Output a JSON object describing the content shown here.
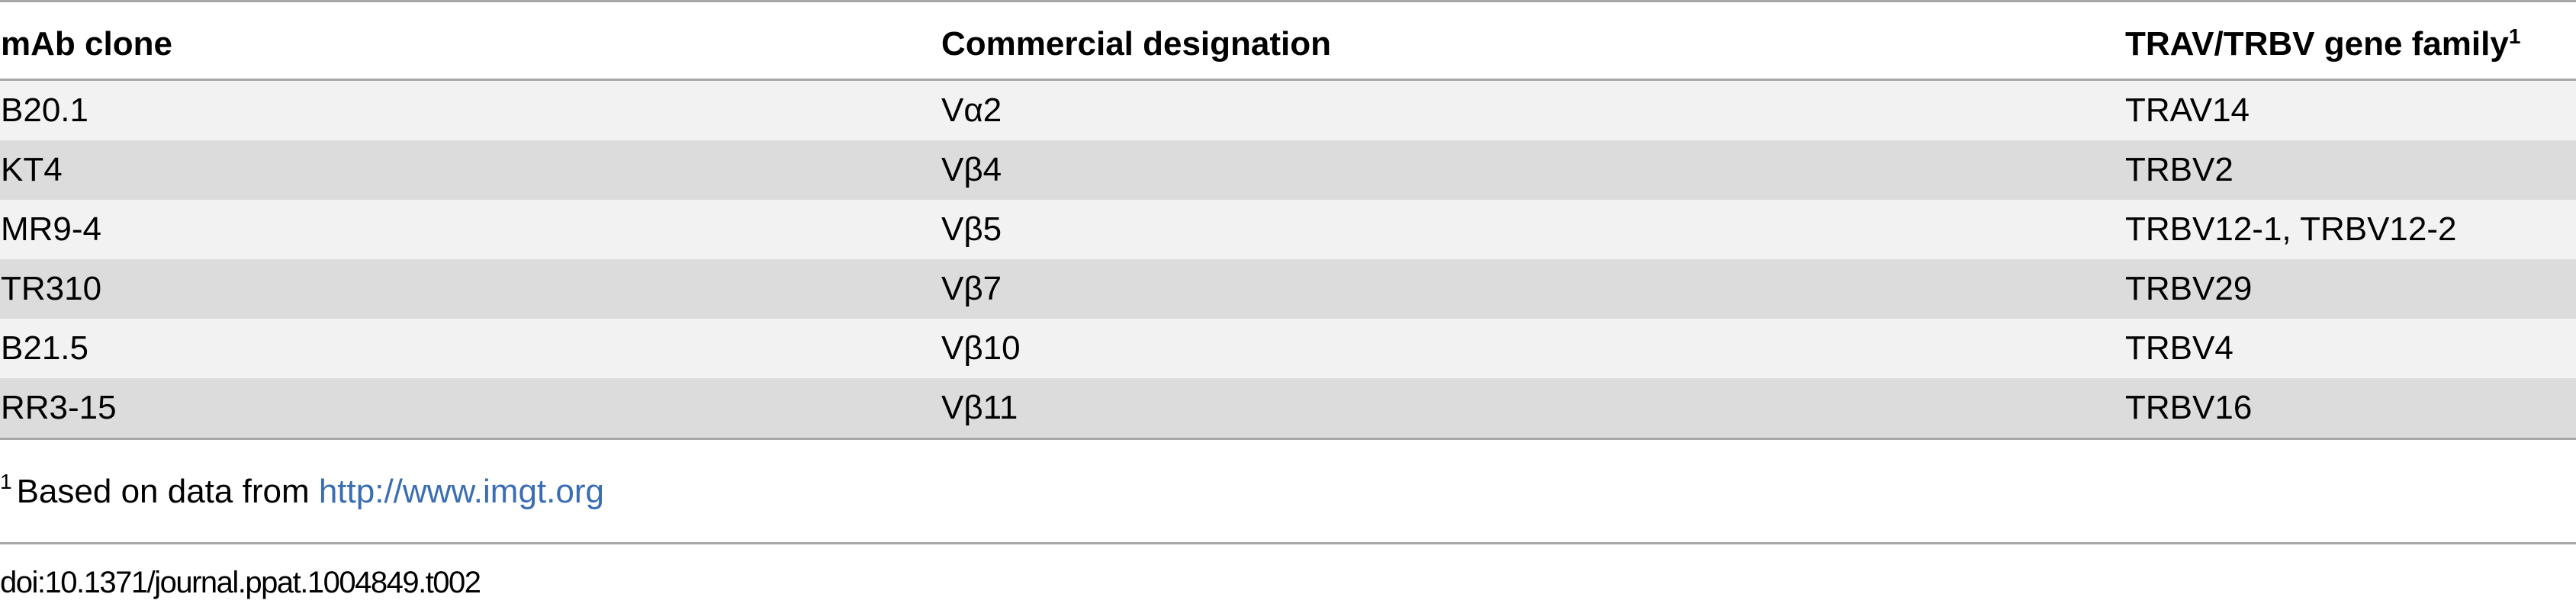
{
  "table": {
    "headers": {
      "col1": "mAb clone",
      "col2": "Commercial designation",
      "col3": "TRAV/TRBV gene family",
      "col3_sup": "1"
    },
    "rows": [
      {
        "clone": "B20.1",
        "designation": "Vα2",
        "gene": "TRAV14"
      },
      {
        "clone": "KT4",
        "designation": "Vβ4",
        "gene": "TRBV2"
      },
      {
        "clone": "MR9-4",
        "designation": "Vβ5",
        "gene": "TRBV12-1, TRBV12-2"
      },
      {
        "clone": "TR310",
        "designation": "Vβ7",
        "gene": "TRBV29"
      },
      {
        "clone": "B21.5",
        "designation": "Vβ10",
        "gene": "TRBV4"
      },
      {
        "clone": "RR3-15",
        "designation": "Vβ11",
        "gene": "TRBV16"
      }
    ]
  },
  "footnote": {
    "marker": "1",
    "text": "Based on data from",
    "link": "http://www.imgt.org"
  },
  "doi": "doi:10.1371/journal.ppat.1004849.t002",
  "colors": {
    "rule": "#a7a7a7",
    "row_light": "#f2f2f2",
    "row_dark": "#dcdcdc",
    "link": "#3a6db3"
  }
}
